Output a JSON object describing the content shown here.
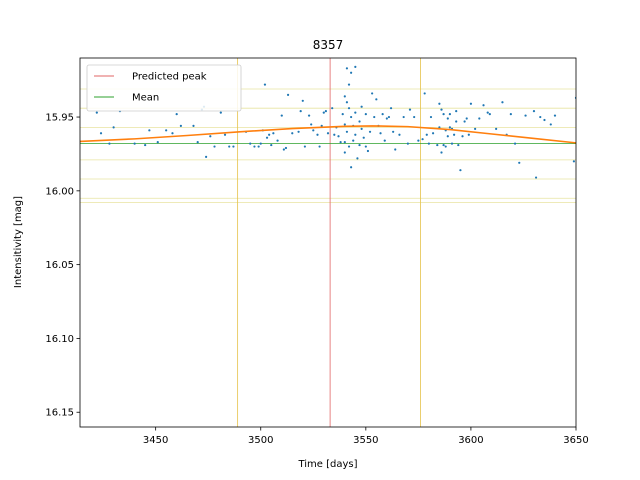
{
  "chart_data": {
    "type": "scatter",
    "title": "8357",
    "xlabel": "Time [days]",
    "ylabel": "Intensitivity [mag]",
    "xlim": [
      3414,
      3650
    ],
    "ylim": [
      16.16,
      15.91
    ],
    "y_inverted": true,
    "x_ticks": [
      3450,
      3500,
      3550,
      3600,
      3650
    ],
    "x_tick_labels": [
      "3450",
      "3500",
      "3550",
      "3600",
      "3650"
    ],
    "y_ticks": [
      15.95,
      16.0,
      16.05,
      16.1,
      16.15
    ],
    "y_tick_labels": [
      "15.95",
      "16.00",
      "16.05",
      "16.10",
      "16.15"
    ],
    "grid": false,
    "legend": {
      "placement": "top-left",
      "entries": [
        {
          "label": "Predicted peak",
          "color": "#e06666"
        },
        {
          "label": "Mean",
          "color": "#2ca02c"
        }
      ]
    },
    "predicted_peak_x": 3533,
    "mean_y": 15.968,
    "window_lines_x": [
      3489,
      3576
    ],
    "band_lines_y": [
      15.931,
      15.944,
      15.957,
      15.979,
      15.992,
      16.005,
      16.008
    ],
    "fit_curve": {
      "color": "#ff7f0e",
      "x": [
        3414,
        3440,
        3465,
        3490,
        3515,
        3540,
        3553,
        3570,
        3590,
        3610,
        3630,
        3650
      ],
      "y": [
        15.9665,
        15.9648,
        15.9625,
        15.96,
        15.9578,
        15.9563,
        15.956,
        15.9565,
        15.9585,
        15.9615,
        15.9645,
        15.9675
      ]
    },
    "series": [
      {
        "color": "#1f77b4",
        "points": [
          [
            3422,
            15.947
          ],
          [
            3424,
            15.961
          ],
          [
            3428,
            15.968
          ],
          [
            3430,
            15.957
          ],
          [
            3433,
            15.946
          ],
          [
            3440,
            15.968
          ],
          [
            3445,
            15.969
          ],
          [
            3447,
            15.959
          ],
          [
            3451,
            15.967
          ],
          [
            3455,
            15.959
          ],
          [
            3458,
            15.961
          ],
          [
            3460,
            15.948
          ],
          [
            3462,
            15.956
          ],
          [
            3468,
            15.956
          ],
          [
            3470,
            15.967
          ],
          [
            3472,
            15.945
          ],
          [
            3473,
            15.943
          ],
          [
            3474,
            15.977
          ],
          [
            3476,
            15.963
          ],
          [
            3478,
            15.97
          ],
          [
            3481,
            15.947
          ],
          [
            3483,
            15.962
          ],
          [
            3485,
            15.97
          ],
          [
            3487,
            15.97
          ],
          [
            3493,
            15.96
          ],
          [
            3495,
            15.968
          ],
          [
            3497,
            15.97
          ],
          [
            3499,
            15.97
          ],
          [
            3500,
            15.968
          ],
          [
            3501,
            15.959
          ],
          [
            3502,
            15.928
          ],
          [
            3503,
            15.964
          ],
          [
            3504,
            15.962
          ],
          [
            3505,
            15.969
          ],
          [
            3506,
            15.961
          ],
          [
            3508,
            15.966
          ],
          [
            3510,
            15.949
          ],
          [
            3511,
            15.972
          ],
          [
            3512,
            15.971
          ],
          [
            3513,
            15.935
          ],
          [
            3515,
            15.961
          ],
          [
            3518,
            15.96
          ],
          [
            3519,
            15.946
          ],
          [
            3520,
            15.939
          ],
          [
            3521,
            15.97
          ],
          [
            3523,
            15.949
          ],
          [
            3524,
            15.955
          ],
          [
            3525,
            15.959
          ],
          [
            3527,
            15.962
          ],
          [
            3528,
            15.97
          ],
          [
            3529,
            15.956
          ],
          [
            3530,
            15.947
          ],
          [
            3531,
            15.946
          ],
          [
            3532,
            15.961
          ],
          [
            3534,
            15.944
          ],
          [
            3535,
            15.962
          ],
          [
            3536,
            15.957
          ],
          [
            3537,
            15.963
          ],
          [
            3538,
            15.967
          ],
          [
            3539,
            15.948
          ],
          [
            3540,
            15.936
          ],
          [
            3540,
            15.967
          ],
          [
            3540,
            15.955
          ],
          [
            3540,
            15.974
          ],
          [
            3541,
            15.917
          ],
          [
            3541,
            15.94
          ],
          [
            3541,
            15.96
          ],
          [
            3542,
            15.928
          ],
          [
            3542,
            15.944
          ],
          [
            3542,
            15.97
          ],
          [
            3543,
            15.92
          ],
          [
            3543,
            15.95
          ],
          [
            3543,
            15.984
          ],
          [
            3544,
            15.956
          ],
          [
            3544,
            15.966
          ],
          [
            3545,
            15.916
          ],
          [
            3545,
            15.947
          ],
          [
            3545,
            15.962
          ],
          [
            3546,
            15.978
          ],
          [
            3547,
            15.953
          ],
          [
            3547,
            15.969
          ],
          [
            3548,
            15.958
          ],
          [
            3548,
            15.943
          ],
          [
            3549,
            15.964
          ],
          [
            3550,
            15.948
          ],
          [
            3550,
            15.97
          ],
          [
            3551,
            15.973
          ],
          [
            3552,
            15.96
          ],
          [
            3553,
            15.934
          ],
          [
            3554,
            15.95
          ],
          [
            3555,
            15.938
          ],
          [
            3556,
            15.956
          ],
          [
            3557,
            15.961
          ],
          [
            3558,
            15.948
          ],
          [
            3559,
            15.966
          ],
          [
            3560,
            15.951
          ],
          [
            3561,
            15.95
          ],
          [
            3562,
            15.944
          ],
          [
            3563,
            15.96
          ],
          [
            3564,
            15.972
          ],
          [
            3566,
            15.962
          ],
          [
            3568,
            15.95
          ],
          [
            3570,
            15.968
          ],
          [
            3571,
            15.945
          ],
          [
            3573,
            15.95
          ],
          [
            3575,
            15.966
          ],
          [
            3577,
            15.965
          ],
          [
            3578,
            15.934
          ],
          [
            3579,
            15.962
          ],
          [
            3580,
            15.968
          ],
          [
            3581,
            15.95
          ],
          [
            3582,
            15.961
          ],
          [
            3584,
            15.969
          ],
          [
            3585,
            15.957
          ],
          [
            3585,
            15.941
          ],
          [
            3586,
            15.945
          ],
          [
            3586,
            15.974
          ],
          [
            3587,
            15.969
          ],
          [
            3587,
            15.948
          ],
          [
            3588,
            15.959
          ],
          [
            3588,
            15.97
          ],
          [
            3589,
            15.951
          ],
          [
            3589,
            15.963
          ],
          [
            3590,
            15.957
          ],
          [
            3590,
            15.948
          ],
          [
            3591,
            15.968
          ],
          [
            3591,
            15.958
          ],
          [
            3592,
            15.962
          ],
          [
            3593,
            15.946
          ],
          [
            3593,
            15.953
          ],
          [
            3594,
            15.969
          ],
          [
            3595,
            15.986
          ],
          [
            3596,
            15.963
          ],
          [
            3597,
            15.953
          ],
          [
            3598,
            15.951
          ],
          [
            3599,
            15.962
          ],
          [
            3600,
            15.941
          ],
          [
            3602,
            15.958
          ],
          [
            3604,
            15.951
          ],
          [
            3606,
            15.942
          ],
          [
            3608,
            15.947
          ],
          [
            3609,
            15.948
          ],
          [
            3612,
            15.958
          ],
          [
            3615,
            15.94
          ],
          [
            3617,
            15.962
          ],
          [
            3619,
            15.948
          ],
          [
            3621,
            15.968
          ],
          [
            3623,
            15.981
          ],
          [
            3626,
            15.949
          ],
          [
            3630,
            15.946
          ],
          [
            3631,
            15.991
          ],
          [
            3633,
            15.95
          ],
          [
            3635,
            15.952
          ],
          [
            3638,
            15.955
          ],
          [
            3640,
            15.949
          ],
          [
            3649,
            15.98
          ],
          [
            3650,
            15.937
          ]
        ]
      }
    ]
  }
}
